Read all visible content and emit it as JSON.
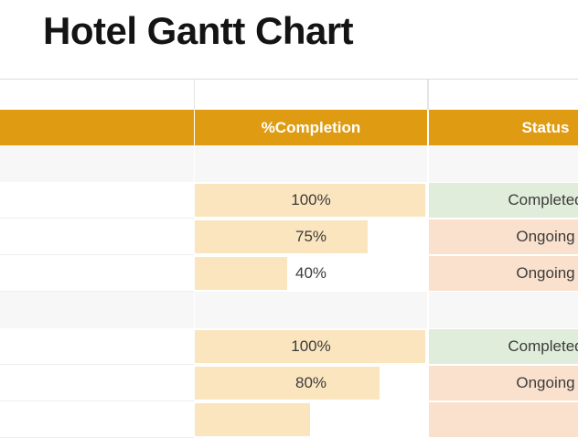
{
  "title": "Hotel Gantt Chart",
  "colors": {
    "header_bg": "#DF9C13",
    "databar": "#FBE5BF",
    "status": {
      "completed": "#E0EDDA",
      "ongoing": "#FAE1CE"
    },
    "section_row_bg": "#F7F7F7"
  },
  "table": {
    "columns": [
      {
        "label": ""
      },
      {
        "label": "%Completion"
      },
      {
        "label": "Status"
      }
    ],
    "rows": [
      {
        "type": "section",
        "completion": null,
        "completion_label": "",
        "status": "",
        "status_kind": ""
      },
      {
        "type": "data",
        "completion": 100,
        "completion_label": "100%",
        "status": "Completed",
        "status_kind": "completed"
      },
      {
        "type": "data",
        "completion": 75,
        "completion_label": "75%",
        "status": "Ongoing",
        "status_kind": "ongoing"
      },
      {
        "type": "data",
        "completion": 40,
        "completion_label": "40%",
        "status": "Ongoing",
        "status_kind": "ongoing"
      },
      {
        "type": "section",
        "completion": null,
        "completion_label": "",
        "status": "",
        "status_kind": ""
      },
      {
        "type": "data",
        "completion": 100,
        "completion_label": "100%",
        "status": "Completed",
        "status_kind": "completed"
      },
      {
        "type": "data",
        "completion": 80,
        "completion_label": "80%",
        "status": "Ongoing",
        "status_kind": "ongoing"
      },
      {
        "type": "data",
        "completion": 50,
        "completion_label": "",
        "status": "",
        "status_kind": "ongoing"
      }
    ]
  }
}
